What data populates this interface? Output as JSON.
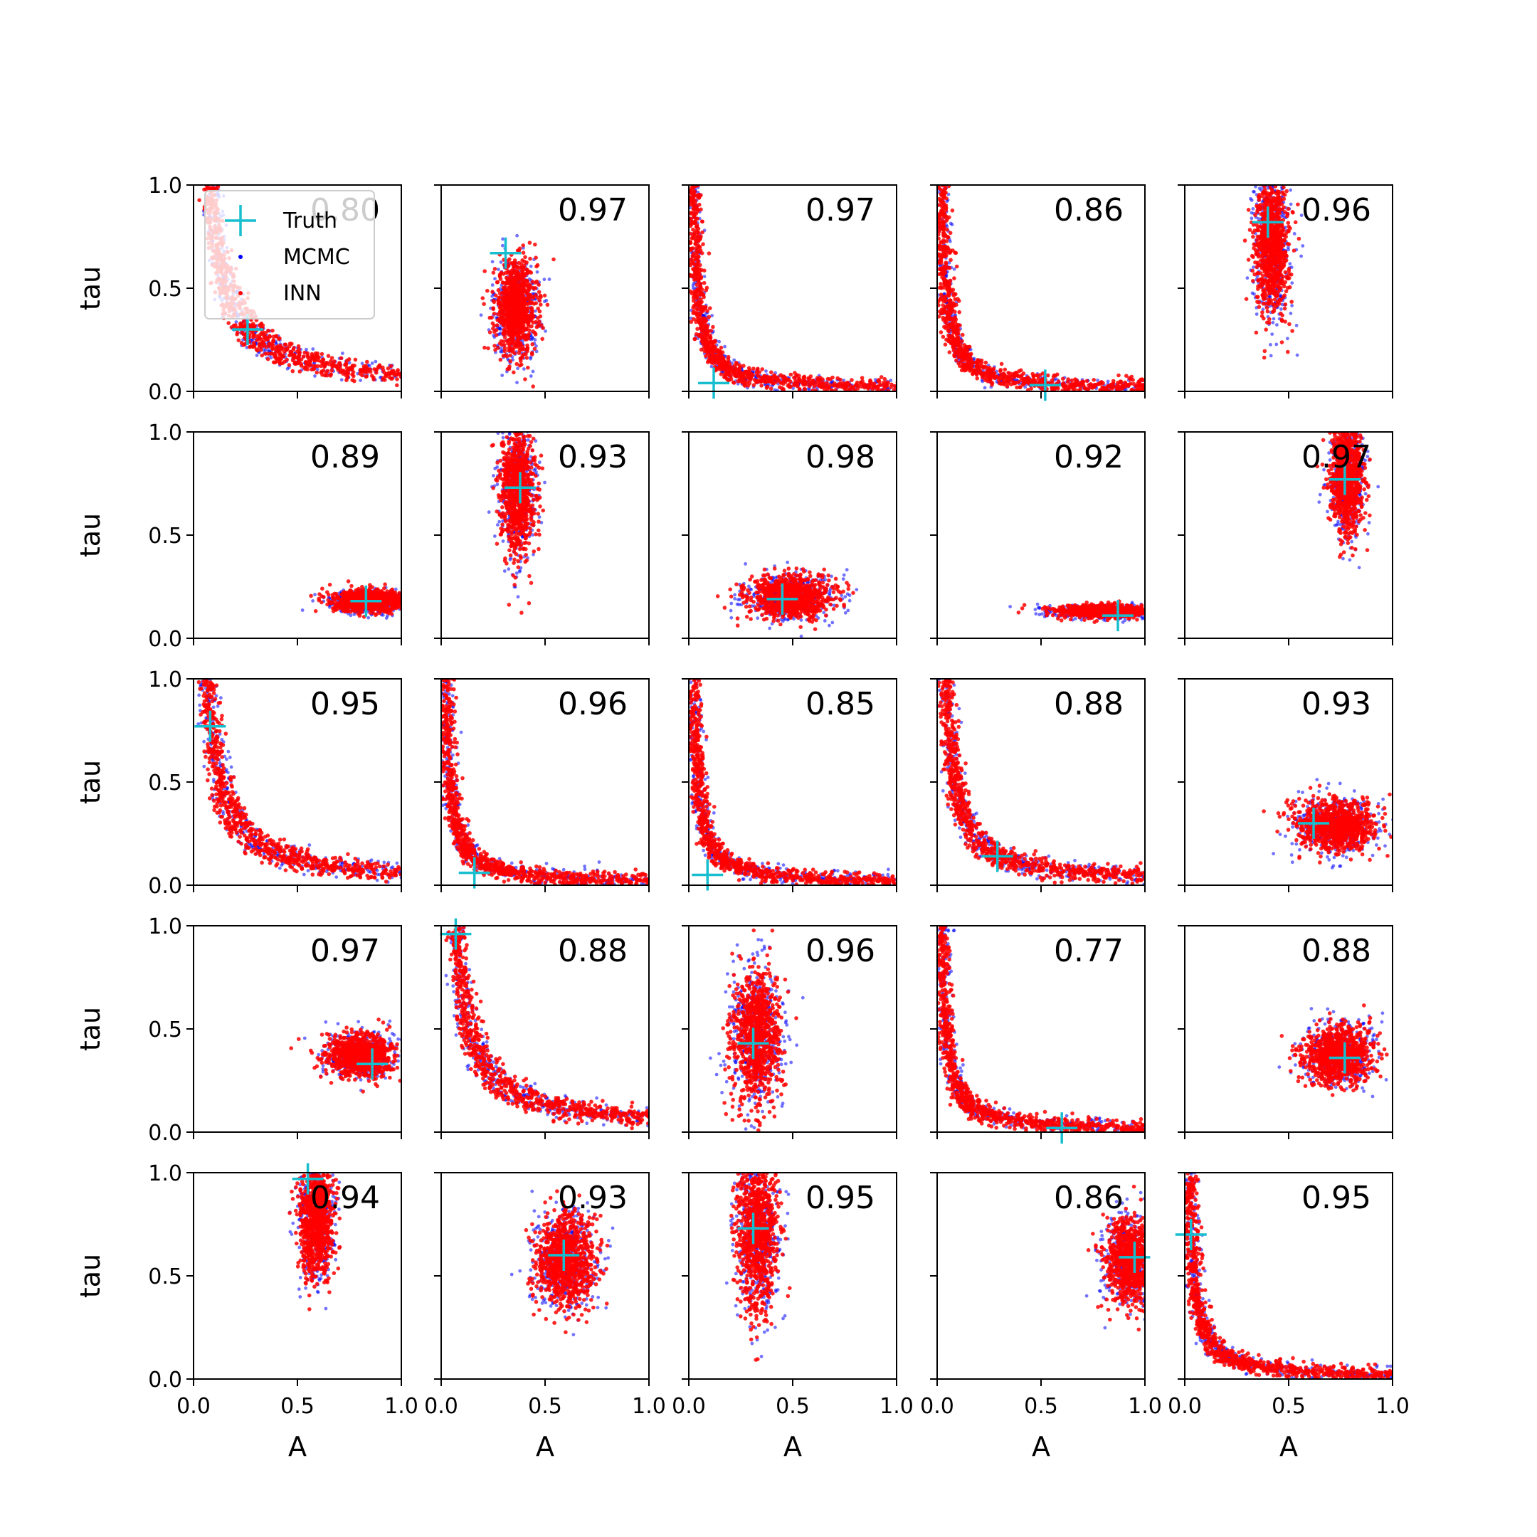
{
  "figure": {
    "type": "scatter-grid",
    "rows": 5,
    "cols": 5,
    "xlabel": "A",
    "ylabel": "tau",
    "xlim": [
      0,
      1
    ],
    "ylim": [
      0,
      1
    ],
    "x_ticks": [
      "0.0",
      "0.5",
      "1.0"
    ],
    "y_ticks": [
      "0.0",
      "0.5",
      "1.0"
    ],
    "colors": {
      "truth": "#17becf",
      "mcmc": "#0000ff",
      "inn": "#ff0000"
    }
  },
  "legend": {
    "placement": "upper-left of first panel",
    "entries": [
      {
        "label": "Truth",
        "marker": "plus",
        "color": "#17becf"
      },
      {
        "label": "MCMC",
        "marker": "dot",
        "color": "#0000ff"
      },
      {
        "label": "INN",
        "marker": "dot",
        "color": "#ff0000"
      }
    ]
  },
  "chart_data": [
    {
      "type": "scatter",
      "score": "0.80",
      "truth": {
        "A": 0.26,
        "tau": 0.3
      },
      "shape": "banana"
    },
    {
      "type": "scatter",
      "score": "0.97",
      "truth": {
        "A": 0.31,
        "tau": 0.67
      },
      "shape": "blob",
      "center": {
        "A": 0.36,
        "tau": 0.4
      },
      "spread": {
        "A": 0.05,
        "tau": 0.11
      }
    },
    {
      "type": "scatter",
      "score": "0.97",
      "truth": {
        "A": 0.12,
        "tau": 0.04
      },
      "shape": "banana"
    },
    {
      "type": "scatter",
      "score": "0.86",
      "truth": {
        "A": 0.52,
        "tau": 0.03
      },
      "shape": "banana"
    },
    {
      "type": "scatter",
      "score": "0.96",
      "truth": {
        "A": 0.4,
        "tau": 0.82
      },
      "shape": "blob",
      "center": {
        "A": 0.42,
        "tau": 0.72
      },
      "spread": {
        "A": 0.04,
        "tau": 0.17
      }
    },
    {
      "type": "scatter",
      "score": "0.89",
      "truth": {
        "A": 0.83,
        "tau": 0.18
      },
      "shape": "blob",
      "center": {
        "A": 0.85,
        "tau": 0.18
      },
      "spread": {
        "A": 0.09,
        "tau": 0.025
      }
    },
    {
      "type": "scatter",
      "score": "0.93",
      "truth": {
        "A": 0.38,
        "tau": 0.73
      },
      "shape": "blob",
      "center": {
        "A": 0.37,
        "tau": 0.72
      },
      "spread": {
        "A": 0.04,
        "tau": 0.15
      }
    },
    {
      "type": "scatter",
      "score": "0.98",
      "truth": {
        "A": 0.45,
        "tau": 0.19
      },
      "shape": "blob",
      "center": {
        "A": 0.49,
        "tau": 0.2
      },
      "spread": {
        "A": 0.1,
        "tau": 0.05
      }
    },
    {
      "type": "scatter",
      "score": "0.92",
      "truth": {
        "A": 0.87,
        "tau": 0.11
      },
      "shape": "blob",
      "center": {
        "A": 0.8,
        "tau": 0.13
      },
      "spread": {
        "A": 0.11,
        "tau": 0.015
      }
    },
    {
      "type": "scatter",
      "score": "0.97",
      "truth": {
        "A": 0.77,
        "tau": 0.77
      },
      "shape": "blob",
      "center": {
        "A": 0.78,
        "tau": 0.78
      },
      "spread": {
        "A": 0.04,
        "tau": 0.13
      }
    },
    {
      "type": "scatter",
      "score": "0.95",
      "truth": {
        "A": 0.08,
        "tau": 0.77
      },
      "shape": "banana"
    },
    {
      "type": "scatter",
      "score": "0.96",
      "truth": {
        "A": 0.16,
        "tau": 0.06
      },
      "shape": "banana"
    },
    {
      "type": "scatter",
      "score": "0.85",
      "truth": {
        "A": 0.09,
        "tau": 0.05
      },
      "shape": "banana"
    },
    {
      "type": "scatter",
      "score": "0.88",
      "truth": {
        "A": 0.29,
        "tau": 0.14
      },
      "shape": "banana"
    },
    {
      "type": "scatter",
      "score": "0.93",
      "truth": {
        "A": 0.62,
        "tau": 0.3
      },
      "shape": "blob",
      "center": {
        "A": 0.73,
        "tau": 0.29
      },
      "spread": {
        "A": 0.09,
        "tau": 0.06
      }
    },
    {
      "type": "scatter",
      "score": "0.97",
      "truth": {
        "A": 0.86,
        "tau": 0.33
      },
      "shape": "blob",
      "center": {
        "A": 0.8,
        "tau": 0.37
      },
      "spread": {
        "A": 0.08,
        "tau": 0.05
      }
    },
    {
      "type": "scatter",
      "score": "0.88",
      "truth": {
        "A": 0.07,
        "tau": 0.96
      },
      "shape": "banana"
    },
    {
      "type": "scatter",
      "score": "0.96",
      "truth": {
        "A": 0.31,
        "tau": 0.43
      },
      "shape": "blob",
      "center": {
        "A": 0.33,
        "tau": 0.47
      },
      "spread": {
        "A": 0.06,
        "tau": 0.16
      }
    },
    {
      "type": "scatter",
      "score": "0.77",
      "truth": {
        "A": 0.6,
        "tau": 0.02
      },
      "shape": "banana"
    },
    {
      "type": "scatter",
      "score": "0.88",
      "truth": {
        "A": 0.77,
        "tau": 0.36
      },
      "shape": "blob",
      "center": {
        "A": 0.74,
        "tau": 0.37
      },
      "spread": {
        "A": 0.08,
        "tau": 0.07
      }
    },
    {
      "type": "scatter",
      "score": "0.94",
      "truth": {
        "A": 0.55,
        "tau": 0.97
      },
      "shape": "blob",
      "center": {
        "A": 0.59,
        "tau": 0.78
      },
      "spread": {
        "A": 0.04,
        "tau": 0.13
      }
    },
    {
      "type": "scatter",
      "score": "0.93",
      "truth": {
        "A": 0.59,
        "tau": 0.6
      },
      "shape": "blob",
      "center": {
        "A": 0.6,
        "tau": 0.58
      },
      "spread": {
        "A": 0.07,
        "tau": 0.11
      }
    },
    {
      "type": "scatter",
      "score": "0.95",
      "truth": {
        "A": 0.31,
        "tau": 0.73
      },
      "shape": "blob",
      "center": {
        "A": 0.33,
        "tau": 0.7
      },
      "spread": {
        "A": 0.05,
        "tau": 0.18
      }
    },
    {
      "type": "scatter",
      "score": "0.86",
      "truth": {
        "A": 0.95,
        "tau": 0.59
      },
      "shape": "blob",
      "center": {
        "A": 0.93,
        "tau": 0.57
      },
      "spread": {
        "A": 0.06,
        "tau": 0.1
      }
    },
    {
      "type": "scatter",
      "score": "0.95",
      "truth": {
        "A": 0.03,
        "tau": 0.7
      },
      "shape": "banana"
    }
  ]
}
